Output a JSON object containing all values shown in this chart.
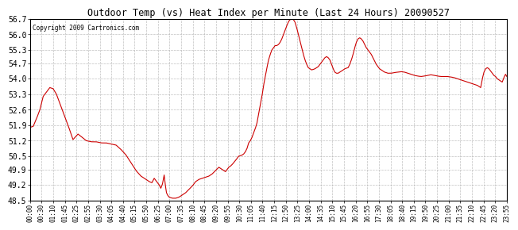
{
  "title": "Outdoor Temp (vs) Heat Index per Minute (Last 24 Hours) 20090527",
  "copyright_text": "Copyright 2009 Cartronics.com",
  "line_color": "#cc0000",
  "background_color": "#ffffff",
  "plot_bg_color": "#ffffff",
  "grid_color": "#b0b0b0",
  "yticks": [
    48.5,
    49.2,
    49.9,
    50.5,
    51.2,
    51.9,
    52.6,
    53.3,
    54.0,
    54.7,
    55.3,
    56.0,
    56.7
  ],
  "ylim": [
    48.5,
    56.7
  ],
  "xtick_labels": [
    "00:00",
    "00:30",
    "01:10",
    "01:45",
    "02:25",
    "02:55",
    "03:30",
    "04:05",
    "04:40",
    "05:15",
    "05:50",
    "06:25",
    "07:00",
    "07:35",
    "08:10",
    "08:45",
    "09:20",
    "09:55",
    "10:30",
    "11:05",
    "11:40",
    "12:15",
    "12:50",
    "13:25",
    "14:00",
    "14:35",
    "15:10",
    "15:45",
    "16:20",
    "16:55",
    "17:30",
    "18:05",
    "18:40",
    "19:15",
    "19:50",
    "20:25",
    "21:00",
    "21:35",
    "22:10",
    "22:45",
    "23:20",
    "23:55"
  ],
  "key_points": [
    [
      0,
      51.8
    ],
    [
      10,
      51.85
    ],
    [
      20,
      52.2
    ],
    [
      30,
      52.6
    ],
    [
      40,
      53.2
    ],
    [
      60,
      53.6
    ],
    [
      70,
      53.55
    ],
    [
      80,
      53.3
    ],
    [
      100,
      52.5
    ],
    [
      115,
      51.9
    ],
    [
      130,
      51.25
    ],
    [
      145,
      51.5
    ],
    [
      158,
      51.35
    ],
    [
      170,
      51.2
    ],
    [
      185,
      51.15
    ],
    [
      200,
      51.15
    ],
    [
      215,
      51.1
    ],
    [
      230,
      51.1
    ],
    [
      245,
      51.05
    ],
    [
      260,
      51.0
    ],
    [
      275,
      50.8
    ],
    [
      290,
      50.55
    ],
    [
      305,
      50.2
    ],
    [
      320,
      49.85
    ],
    [
      335,
      49.6
    ],
    [
      350,
      49.45
    ],
    [
      360,
      49.35
    ],
    [
      368,
      49.3
    ],
    [
      375,
      49.5
    ],
    [
      380,
      49.4
    ],
    [
      385,
      49.3
    ],
    [
      390,
      49.2
    ],
    [
      395,
      49.05
    ],
    [
      400,
      49.25
    ],
    [
      405,
      49.65
    ],
    [
      408,
      49.25
    ],
    [
      412,
      48.85
    ],
    [
      415,
      48.75
    ],
    [
      420,
      48.65
    ],
    [
      425,
      48.62
    ],
    [
      430,
      48.6
    ],
    [
      435,
      48.6
    ],
    [
      440,
      48.6
    ],
    [
      445,
      48.62
    ],
    [
      450,
      48.65
    ],
    [
      455,
      48.7
    ],
    [
      460,
      48.75
    ],
    [
      470,
      48.85
    ],
    [
      480,
      49.0
    ],
    [
      490,
      49.15
    ],
    [
      500,
      49.35
    ],
    [
      510,
      49.45
    ],
    [
      520,
      49.5
    ],
    [
      530,
      49.55
    ],
    [
      540,
      49.6
    ],
    [
      550,
      49.7
    ],
    [
      560,
      49.85
    ],
    [
      570,
      50.0
    ],
    [
      580,
      49.9
    ],
    [
      590,
      49.8
    ],
    [
      595,
      49.9
    ],
    [
      600,
      50.0
    ],
    [
      605,
      50.05
    ],
    [
      610,
      50.12
    ],
    [
      620,
      50.3
    ],
    [
      630,
      50.5
    ],
    [
      635,
      50.52
    ],
    [
      640,
      50.55
    ],
    [
      645,
      50.6
    ],
    [
      650,
      50.7
    ],
    [
      655,
      50.85
    ],
    [
      660,
      51.1
    ],
    [
      665,
      51.2
    ],
    [
      670,
      51.35
    ],
    [
      675,
      51.55
    ],
    [
      680,
      51.75
    ],
    [
      685,
      52.0
    ],
    [
      690,
      52.4
    ],
    [
      695,
      52.8
    ],
    [
      700,
      53.2
    ],
    [
      705,
      53.7
    ],
    [
      710,
      54.1
    ],
    [
      715,
      54.5
    ],
    [
      720,
      54.85
    ],
    [
      725,
      55.1
    ],
    [
      730,
      55.3
    ],
    [
      735,
      55.4
    ],
    [
      740,
      55.5
    ],
    [
      745,
      55.5
    ],
    [
      750,
      55.55
    ],
    [
      755,
      55.65
    ],
    [
      760,
      55.8
    ],
    [
      765,
      56.0
    ],
    [
      770,
      56.2
    ],
    [
      775,
      56.4
    ],
    [
      778,
      56.5
    ],
    [
      781,
      56.6
    ],
    [
      784,
      56.65
    ],
    [
      787,
      56.7
    ],
    [
      790,
      56.7
    ],
    [
      793,
      56.7
    ],
    [
      796,
      56.65
    ],
    [
      800,
      56.55
    ],
    [
      805,
      56.3
    ],
    [
      810,
      56.0
    ],
    [
      815,
      55.7
    ],
    [
      820,
      55.4
    ],
    [
      825,
      55.1
    ],
    [
      830,
      54.85
    ],
    [
      835,
      54.65
    ],
    [
      840,
      54.5
    ],
    [
      845,
      54.45
    ],
    [
      850,
      54.4
    ],
    [
      855,
      54.42
    ],
    [
      860,
      54.45
    ],
    [
      865,
      54.5
    ],
    [
      870,
      54.55
    ],
    [
      875,
      54.65
    ],
    [
      880,
      54.75
    ],
    [
      885,
      54.85
    ],
    [
      890,
      54.95
    ],
    [
      895,
      55.0
    ],
    [
      900,
      54.95
    ],
    [
      905,
      54.85
    ],
    [
      910,
      54.65
    ],
    [
      915,
      54.45
    ],
    [
      920,
      54.3
    ],
    [
      925,
      54.25
    ],
    [
      930,
      54.25
    ],
    [
      935,
      54.3
    ],
    [
      940,
      54.35
    ],
    [
      945,
      54.4
    ],
    [
      950,
      54.45
    ],
    [
      955,
      54.48
    ],
    [
      960,
      54.5
    ],
    [
      965,
      54.65
    ],
    [
      970,
      54.85
    ],
    [
      975,
      55.1
    ],
    [
      980,
      55.4
    ],
    [
      985,
      55.65
    ],
    [
      990,
      55.8
    ],
    [
      995,
      55.85
    ],
    [
      1000,
      55.8
    ],
    [
      1005,
      55.7
    ],
    [
      1010,
      55.55
    ],
    [
      1015,
      55.4
    ],
    [
      1020,
      55.3
    ],
    [
      1025,
      55.2
    ],
    [
      1030,
      55.1
    ],
    [
      1035,
      54.95
    ],
    [
      1040,
      54.8
    ],
    [
      1045,
      54.65
    ],
    [
      1050,
      54.55
    ],
    [
      1055,
      54.45
    ],
    [
      1060,
      54.4
    ],
    [
      1065,
      54.35
    ],
    [
      1070,
      54.3
    ],
    [
      1075,
      54.28
    ],
    [
      1080,
      54.25
    ],
    [
      1090,
      54.25
    ],
    [
      1100,
      54.28
    ],
    [
      1110,
      54.3
    ],
    [
      1120,
      54.32
    ],
    [
      1130,
      54.3
    ],
    [
      1140,
      54.25
    ],
    [
      1150,
      54.2
    ],
    [
      1160,
      54.15
    ],
    [
      1170,
      54.12
    ],
    [
      1180,
      54.1
    ],
    [
      1190,
      54.12
    ],
    [
      1200,
      54.15
    ],
    [
      1210,
      54.18
    ],
    [
      1220,
      54.15
    ],
    [
      1230,
      54.12
    ],
    [
      1240,
      54.1
    ],
    [
      1250,
      54.1
    ],
    [
      1260,
      54.1
    ],
    [
      1270,
      54.08
    ],
    [
      1280,
      54.05
    ],
    [
      1290,
      54.0
    ],
    [
      1300,
      53.95
    ],
    [
      1310,
      53.9
    ],
    [
      1320,
      53.85
    ],
    [
      1330,
      53.8
    ],
    [
      1340,
      53.75
    ],
    [
      1350,
      53.7
    ],
    [
      1355,
      53.65
    ],
    [
      1360,
      53.6
    ],
    [
      1365,
      54.0
    ],
    [
      1370,
      54.3
    ],
    [
      1375,
      54.45
    ],
    [
      1380,
      54.5
    ],
    [
      1385,
      54.45
    ],
    [
      1390,
      54.35
    ],
    [
      1395,
      54.25
    ],
    [
      1400,
      54.15
    ],
    [
      1405,
      54.1
    ],
    [
      1410,
      54.0
    ],
    [
      1415,
      53.95
    ],
    [
      1420,
      53.9
    ],
    [
      1425,
      53.85
    ],
    [
      1430,
      54.05
    ],
    [
      1435,
      54.2
    ],
    [
      1439,
      54.1
    ]
  ]
}
